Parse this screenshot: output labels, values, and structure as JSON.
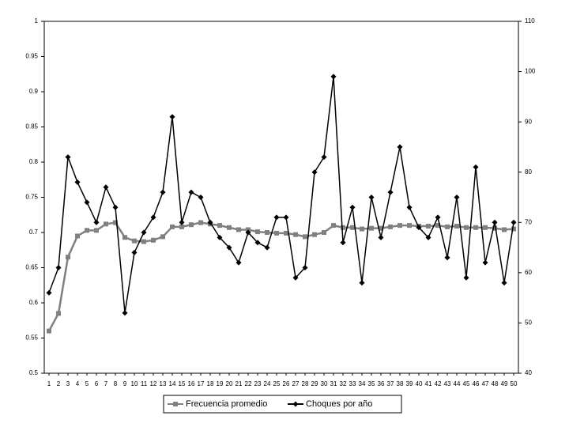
{
  "chart_data": {
    "type": "line",
    "categories": [
      "1",
      "2",
      "3",
      "4",
      "5",
      "6",
      "7",
      "8",
      "9",
      "10",
      "11",
      "12",
      "13",
      "14",
      "15",
      "16",
      "17",
      "18",
      "19",
      "20",
      "21",
      "22",
      "23",
      "24",
      "25",
      "26",
      "27",
      "28",
      "29",
      "30",
      "31",
      "32",
      "33",
      "34",
      "35",
      "36",
      "37",
      "38",
      "39",
      "40",
      "41",
      "42",
      "43",
      "44",
      "45",
      "46",
      "47",
      "48",
      "49",
      "50"
    ],
    "series": [
      {
        "name": "Frecuencia promedio",
        "color": "#808080",
        "marker": "square",
        "values": [
          0.56,
          0.585,
          0.665,
          0.695,
          0.703,
          0.703,
          0.712,
          0.714,
          0.693,
          0.688,
          0.687,
          0.689,
          0.694,
          0.708,
          0.708,
          0.711,
          0.714,
          0.712,
          0.71,
          0.707,
          0.704,
          0.704,
          0.701,
          0.7,
          0.699,
          0.699,
          0.697,
          0.694,
          0.697,
          0.7,
          0.71,
          0.707,
          0.707,
          0.705,
          0.706,
          0.706,
          0.708,
          0.71,
          0.71,
          0.709,
          0.709,
          0.71,
          0.708,
          0.709,
          0.707,
          0.707,
          0.707,
          0.706,
          0.704,
          0.705
        ]
      },
      {
        "name": "Choques por año",
        "color": "#000000",
        "marker": "diamond",
        "axis": "y2",
        "values": [
          56,
          61,
          83,
          78,
          74,
          70,
          77,
          73,
          52,
          64,
          68,
          71,
          76,
          91,
          70,
          76,
          75,
          70,
          67,
          65,
          62,
          68,
          66,
          65,
          71,
          71,
          59,
          61,
          80,
          83,
          99,
          66,
          73,
          58,
          75,
          67,
          76,
          85,
          73,
          69,
          67,
          71,
          63,
          75,
          59,
          81,
          62,
          70,
          58,
          70
        ]
      }
    ],
    "ylim": [
      0.5,
      1
    ],
    "yticks": [
      0.5,
      0.55,
      0.6,
      0.65,
      0.7,
      0.75,
      0.8,
      0.85,
      0.9,
      0.95,
      1
    ],
    "y2lim": [
      40,
      110
    ],
    "y2ticks": [
      40,
      50,
      60,
      70,
      80,
      90,
      100,
      110
    ],
    "grid": false,
    "legend": "bottom"
  }
}
